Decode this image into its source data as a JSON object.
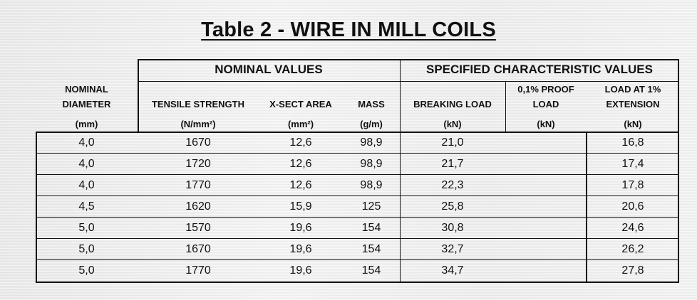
{
  "title": "Table 2 - WIRE IN MILL COILS",
  "groups": {
    "nominal": "NOMINAL VALUES",
    "specified": "SPECIFIED CHARACTERISTIC VALUES"
  },
  "columns": [
    {
      "name": [
        "NOMINAL",
        "DIAMETER"
      ],
      "unit": "(mm)"
    },
    {
      "name": [
        "TENSILE STRENGTH"
      ],
      "unit": "(N/mm²)"
    },
    {
      "name": [
        "X-SECT AREA"
      ],
      "unit": "(mm²)"
    },
    {
      "name": [
        "MASS"
      ],
      "unit": "(g/m)"
    },
    {
      "name": [
        "BREAKING LOAD"
      ],
      "unit": "(kN)"
    },
    {
      "name": [
        "0,1% PROOF",
        "LOAD"
      ],
      "unit": "(kN)"
    },
    {
      "name": [
        "LOAD AT 1%",
        "EXTENSION"
      ],
      "unit": "(kN)"
    }
  ],
  "rows": [
    [
      "4,0",
      "1670",
      "12,6",
      "98,9",
      "21,0",
      "",
      "16,8"
    ],
    [
      "4,0",
      "1720",
      "12,6",
      "98,9",
      "21,7",
      "",
      "17,4"
    ],
    [
      "4,0",
      "1770",
      "12,6",
      "98,9",
      "22,3",
      "",
      "17,8"
    ],
    [
      "4,5",
      "1620",
      "15,9",
      "125",
      "25,8",
      "",
      "20,6"
    ],
    [
      "5,0",
      "1570",
      "19,6",
      "154",
      "30,8",
      "",
      "24,6"
    ],
    [
      "5,0",
      "1670",
      "19,6",
      "154",
      "32,7",
      "",
      "26,2"
    ],
    [
      "5,0",
      "1770",
      "19,6",
      "154",
      "34,7",
      "",
      "27,8"
    ]
  ]
}
